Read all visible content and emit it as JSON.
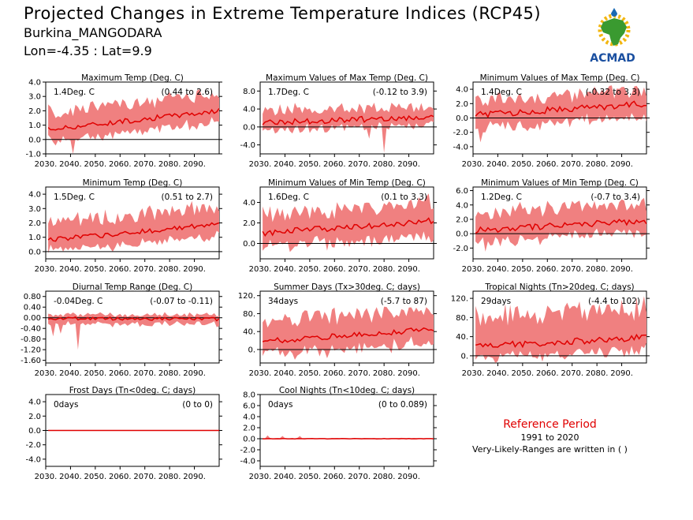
{
  "header": {
    "title": "Projected Changes in Extreme Temperature Indices (RCP45)",
    "location": "Burkina_MANGODARA",
    "coords": "Lon=-4.35 : Lat=9.9"
  },
  "logo": {
    "text": "ACMAD"
  },
  "reference": {
    "title": "Reference Period",
    "years": "1991 to 2020",
    "note": "Very-Likely-Ranges are written in ( )"
  },
  "colors": {
    "band": "#f08080",
    "line": "#e00000",
    "zero": "#000000"
  },
  "chart_data": [
    {
      "type": "area",
      "title": "Maximum Temp (Deg. C)",
      "value_label": "1.4Deg. C",
      "range_label": "(0.44 to 2.6)",
      "ylim": [
        -1,
        4
      ],
      "yticks": [
        -1,
        0,
        1,
        2,
        3,
        4
      ],
      "ytick_labels": [
        "-1.0",
        "0.0",
        "1.0",
        "2.0",
        "3.0",
        "4.0"
      ],
      "xticks": [
        2030,
        2040,
        2050,
        2060,
        2070,
        2080,
        2090
      ],
      "xlim": [
        2030,
        2100
      ],
      "x_start": 2031,
      "x_end": 2100,
      "mean_start": 0.7,
      "mean_end": 2.0,
      "spread_low": 0.8,
      "spread_high": 1.2,
      "noise": 0.35,
      "spikes": [
        [
          2041,
          -1.1
        ]
      ]
    },
    {
      "type": "area",
      "title": "Maximum Values of Max Temp (Deg. C)",
      "value_label": "1.7Deg. C",
      "range_label": "(-0.12 to 3.9)",
      "ylim": [
        -6,
        10
      ],
      "yticks": [
        -4,
        0,
        4,
        8
      ],
      "ytick_labels": [
        "-4.0",
        "0.0",
        "4.0",
        "8.0"
      ],
      "xticks": [
        2030,
        2040,
        2050,
        2060,
        2070,
        2080,
        2090
      ],
      "xlim": [
        2030,
        2100
      ],
      "x_start": 2031,
      "x_end": 2100,
      "mean_start": 1.0,
      "mean_end": 2.2,
      "spread_low": 1.6,
      "spread_high": 2.6,
      "noise": 1.3,
      "spikes": [
        [
          2080,
          -5.8
        ],
        [
          2074,
          -2.6
        ]
      ]
    },
    {
      "type": "area",
      "title": "Minimum Values of Max Temp (Deg. C)",
      "value_label": "1.4Deg. C",
      "range_label": "(-0.32 to 3.3)",
      "ylim": [
        -5,
        5
      ],
      "yticks": [
        -4,
        -2,
        0,
        2,
        4
      ],
      "ytick_labels": [
        "-4.0",
        "-2.0",
        "0.0",
        "2.0",
        "4.0"
      ],
      "xticks": [
        2030,
        2040,
        2050,
        2060,
        2070,
        2080,
        2090
      ],
      "xlim": [
        2030,
        2100
      ],
      "x_start": 2031,
      "x_end": 2100,
      "mean_start": 0.4,
      "mean_end": 2.0,
      "spread_low": 1.8,
      "spread_high": 2.0,
      "noise": 0.9,
      "spikes": [
        [
          2033,
          -3.4
        ],
        [
          2035,
          -2.0
        ]
      ]
    },
    {
      "type": "area",
      "title": "Minimum Temp (Deg. C)",
      "value_label": "1.5Deg. C",
      "range_label": "(0.51 to 2.7)",
      "ylim": [
        -0.5,
        4.5
      ],
      "yticks": [
        0,
        1,
        2,
        3,
        4
      ],
      "ytick_labels": [
        "0.0",
        "1.0",
        "2.0",
        "3.0",
        "4.0"
      ],
      "xticks": [
        2030,
        2040,
        2050,
        2060,
        2070,
        2080,
        2090
      ],
      "xlim": [
        2030,
        2100
      ],
      "x_start": 2031,
      "x_end": 2100,
      "mean_start": 0.8,
      "mean_end": 1.9,
      "spread_low": 0.8,
      "spread_high": 1.2,
      "noise": 0.35,
      "spikes": []
    },
    {
      "type": "area",
      "title": "Minimum Values of Min Temp (Deg. C)",
      "value_label": "1.6Deg. C",
      "range_label": "(0.1 to 3.3)",
      "ylim": [
        -1.5,
        5.5
      ],
      "yticks": [
        0,
        2,
        4
      ],
      "ytick_labels": [
        "0.0",
        "2.0",
        "4.0"
      ],
      "xticks": [
        2030,
        2040,
        2050,
        2060,
        2070,
        2080,
        2090
      ],
      "xlim": [
        2030,
        2100
      ],
      "x_start": 2031,
      "x_end": 2100,
      "mean_start": 1.0,
      "mean_end": 2.2,
      "spread_low": 1.4,
      "spread_high": 1.8,
      "noise": 0.6,
      "spikes": []
    },
    {
      "type": "area",
      "title": "Minimum Values of Min Temp (Deg. C)",
      "value_label": "1.2Deg. C",
      "range_label": "(-0.7 to 3.4)",
      "ylim": [
        -3.5,
        6.5
      ],
      "yticks": [
        -2,
        0,
        2,
        4,
        6
      ],
      "ytick_labels": [
        "-2.0",
        "0.0",
        "2.0",
        "4.0",
        "6.0"
      ],
      "xticks": [
        2030,
        2040,
        2050,
        2060,
        2070,
        2080,
        2090
      ],
      "xlim": [
        2030,
        2100
      ],
      "x_start": 2031,
      "x_end": 2100,
      "mean_start": 0.5,
      "mean_end": 1.8,
      "spread_low": 1.6,
      "spread_high": 2.4,
      "noise": 0.9,
      "spikes": [
        [
          2035,
          -2.5
        ]
      ]
    },
    {
      "type": "area",
      "title": "Diurnal Temp Range (Deg. C)",
      "value_label": "-0.04Deg. C",
      "range_label": "(-0.07 to -0.11)",
      "ylim": [
        -1.7,
        1.0
      ],
      "yticks": [
        -1.6,
        -1.2,
        -0.8,
        -0.4,
        0,
        0.4,
        0.8
      ],
      "ytick_labels": [
        "-1.60",
        "-1.20",
        "-0.80",
        "-0.40",
        "0.00",
        "0.40",
        "0.80"
      ],
      "xticks": [
        2030,
        2040,
        2050,
        2060,
        2070,
        2080,
        2090
      ],
      "xlim": [
        2030,
        2100
      ],
      "x_start": 2031,
      "x_end": 2100,
      "mean_start": -0.02,
      "mean_end": -0.05,
      "spread_low": 0.2,
      "spread_high": 0.15,
      "noise": 0.12,
      "spikes": [
        [
          2043,
          -1.2
        ],
        [
          2033,
          -0.7
        ],
        [
          2036,
          -0.6
        ]
      ]
    },
    {
      "type": "area",
      "title": "Summer Days (Tx>30deg. C; days)",
      "value_label": "34days",
      "range_label": "(-5.7 to 87)",
      "ylim": [
        -30,
        130
      ],
      "yticks": [
        0,
        40,
        80,
        120
      ],
      "ytick_labels": [
        "0.",
        "40.",
        "80.",
        "120."
      ],
      "xticks": [
        2030,
        2040,
        2050,
        2060,
        2070,
        2080,
        2090
      ],
      "xlim": [
        2030,
        2100
      ],
      "x_start": 2031,
      "x_end": 2100,
      "mean_start": 18,
      "mean_end": 45,
      "spread_low": 30,
      "spread_high": 45,
      "noise": 12,
      "spikes": []
    },
    {
      "type": "area",
      "title": "Tropical Nights (Tn>20deg. C; days)",
      "value_label": "29days",
      "range_label": "(-4.4 to 102)",
      "ylim": [
        -15,
        135
      ],
      "yticks": [
        0,
        40,
        80,
        120
      ],
      "ytick_labels": [
        "0.",
        "40.",
        "80.",
        "120."
      ],
      "xticks": [
        2030,
        2040,
        2050,
        2060,
        2070,
        2080,
        2090
      ],
      "xlim": [
        2030,
        2100
      ],
      "x_start": 2031,
      "x_end": 2100,
      "mean_start": 20,
      "mean_end": 38,
      "spread_low": 25,
      "spread_high": 60,
      "noise": 14,
      "spikes": []
    },
    {
      "type": "area",
      "title": "Frost Days (Tn<0deg. C; days)",
      "value_label": "0days",
      "range_label": "(0 to 0)",
      "ylim": [
        -5,
        5
      ],
      "yticks": [
        -4,
        -2,
        0,
        2,
        4
      ],
      "ytick_labels": [
        "-4.0",
        "-2.0",
        "0.0",
        "2.0",
        "4.0"
      ],
      "xticks": [
        2030,
        2040,
        2050,
        2060,
        2070,
        2080,
        2090
      ],
      "xlim": [
        2030,
        2100
      ],
      "x_start": 2031,
      "x_end": 2100,
      "mean_start": 0,
      "mean_end": 0,
      "spread_low": 0,
      "spread_high": 0,
      "noise": 0,
      "spikes": []
    },
    {
      "type": "area",
      "title": "Cool Nights (Tn<10deg. C; days)",
      "value_label": "0days",
      "range_label": "(0 to 0.089)",
      "ylim": [
        -5,
        8
      ],
      "yticks": [
        -4,
        -2,
        0,
        2,
        4,
        6,
        8
      ],
      "ytick_labels": [
        "-4.0",
        "-2.0",
        "0.0",
        "2.0",
        "4.0",
        "6.0",
        "8.0"
      ],
      "xticks": [
        2030,
        2040,
        2050,
        2060,
        2070,
        2080,
        2090
      ],
      "xlim": [
        2030,
        2100
      ],
      "x_start": 2031,
      "x_end": 2100,
      "mean_start": 0,
      "mean_end": 0,
      "spread_low": 0,
      "spread_high": 0.1,
      "noise": 0.05,
      "spikes": [
        [
          2033,
          0.6
        ],
        [
          2039,
          0.5
        ],
        [
          2046,
          0.5
        ]
      ]
    }
  ]
}
